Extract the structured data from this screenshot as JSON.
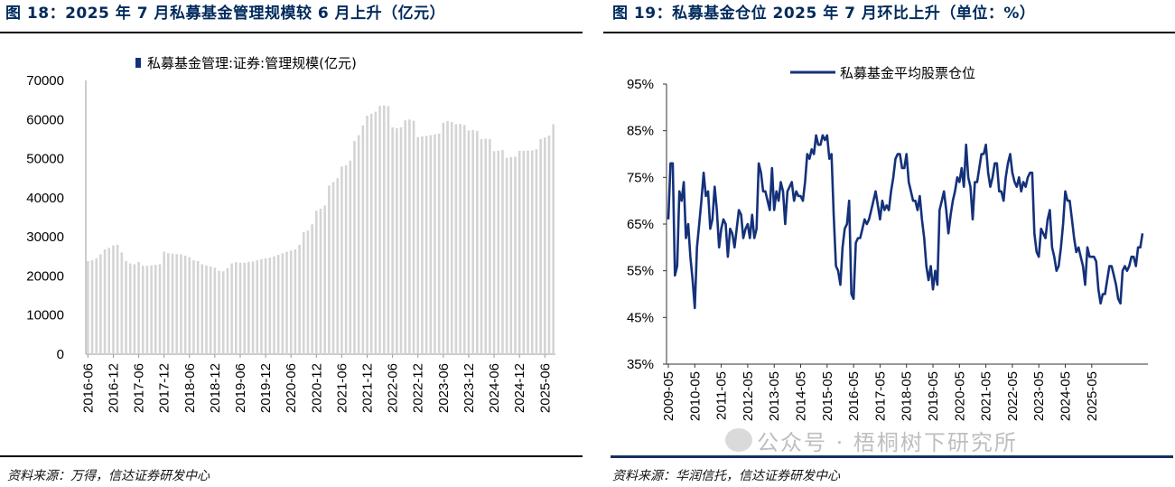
{
  "left": {
    "title": "图 18：2025 年 7 月私募基金管理规模较 6 月上升（亿元）",
    "source": "资料来源：万得，信达证券研发中心"
  },
  "right": {
    "title": "图 19：私募基金仓位 2025 年 7 月环比上升（单位：%）",
    "source": "资料来源：华润信托，信达证券研发中心"
  },
  "watermark": "公众号 · 梧桐树下研究所",
  "colors": {
    "bar": "#d4d4d4",
    "line": "#14317a",
    "legend_marker": "#14317a",
    "title": "#002a5c"
  },
  "chart_data": [
    {
      "type": "bar",
      "legend": "私募基金管理:证券:管理规模(亿元)",
      "ylim": [
        0,
        70000
      ],
      "yticks": [
        "0",
        "10000",
        "20000",
        "30000",
        "40000",
        "50000",
        "60000",
        "70000"
      ],
      "x_tick_labels": [
        "2016-06",
        "2016-12",
        "2017-06",
        "2017-12",
        "2018-06",
        "2018-12",
        "2019-06",
        "2019-12",
        "2020-06",
        "2020-12",
        "2021-06",
        "2021-12",
        "2022-06",
        "2022-12",
        "2023-06",
        "2023-12",
        "2024-06",
        "2024-12",
        "2025-06"
      ],
      "x_tick_index": [
        0,
        6,
        12,
        18,
        24,
        30,
        36,
        42,
        48,
        54,
        60,
        66,
        72,
        78,
        84,
        90,
        96,
        102,
        108
      ],
      "values": [
        23800,
        24000,
        24500,
        25500,
        26800,
        27200,
        27800,
        28000,
        26000,
        23800,
        23200,
        23000,
        23600,
        22600,
        22600,
        22700,
        22800,
        23000,
        26200,
        25800,
        25700,
        25600,
        25500,
        25200,
        24800,
        24000,
        23800,
        23000,
        22700,
        22400,
        22100,
        21300,
        21200,
        22000,
        23200,
        23500,
        23400,
        23400,
        23600,
        23700,
        24000,
        24300,
        24500,
        24700,
        25000,
        25400,
        25800,
        26200,
        26500,
        26800,
        28000,
        31200,
        31600,
        33200,
        36700,
        37200,
        38000,
        43100,
        44000,
        45000,
        48000,
        48300,
        49500,
        54500,
        56000,
        58500,
        61000,
        61500,
        62000,
        63500,
        63600,
        63400,
        58000,
        57800,
        58000,
        59800,
        60000,
        59700,
        55500,
        55700,
        55800,
        56000,
        56200,
        56400,
        59200,
        59600,
        59400,
        58800,
        58900,
        58600,
        57200,
        57300,
        57100,
        55000,
        55100,
        55000,
        51900,
        52000,
        52200,
        50200,
        50400,
        50500,
        52000,
        52000,
        52100,
        52100,
        52400,
        55000,
        55400,
        55900,
        58800
      ]
    },
    {
      "type": "line",
      "legend": "私募基金平均股票仓位",
      "ylim": [
        35,
        95
      ],
      "yticks": [
        "35%",
        "45%",
        "55%",
        "65%",
        "75%",
        "85%",
        "95%"
      ],
      "x_tick_labels": [
        "2009-05",
        "2010-05",
        "2011-05",
        "2012-05",
        "2013-05",
        "2014-05",
        "2015-05",
        "2016-05",
        "2017-05",
        "2018-05",
        "2019-05",
        "2020-05",
        "2021-05",
        "2022-05",
        "2023-05",
        "2024-05",
        "2025-05"
      ],
      "x_tick_index": [
        0,
        12,
        24,
        36,
        48,
        60,
        72,
        84,
        96,
        108,
        120,
        132,
        144,
        156,
        168,
        180,
        192
      ],
      "values": [
        66,
        78,
        78,
        54,
        56,
        72,
        70,
        74,
        62,
        65,
        58,
        53,
        47,
        60,
        65,
        70,
        76,
        71,
        72,
        64,
        66,
        73,
        68,
        60,
        64,
        66,
        65,
        58,
        64,
        63,
        60,
        64,
        68,
        67,
        62,
        64,
        65,
        62,
        67,
        62,
        64,
        78,
        76,
        72,
        72,
        70,
        68,
        77,
        68,
        72,
        70,
        74,
        72,
        65,
        72,
        73,
        74,
        70,
        72,
        71,
        71,
        70,
        74,
        80,
        79,
        81,
        80,
        84,
        82,
        82,
        84,
        83,
        84,
        79,
        80,
        67,
        56,
        55,
        52,
        60,
        64,
        65,
        70,
        50,
        49,
        61,
        62,
        62,
        64,
        66,
        65,
        66,
        68,
        70,
        72,
        69,
        66,
        70,
        68,
        69,
        68,
        72,
        75,
        79,
        80,
        80,
        77,
        77,
        80,
        74,
        72,
        70,
        70,
        68,
        71,
        66,
        62,
        56,
        53,
        56,
        51,
        55,
        52,
        68,
        70,
        72,
        68,
        63,
        67,
        70,
        72,
        75,
        74,
        77,
        73,
        82,
        75,
        73,
        66,
        74,
        74,
        77,
        80,
        80,
        82,
        76,
        73,
        75,
        78,
        78,
        72,
        72,
        70,
        75,
        78,
        80,
        76,
        74,
        73,
        75,
        72,
        74,
        73,
        75,
        76,
        76,
        63,
        59,
        58,
        64,
        63,
        62,
        66,
        68,
        60,
        58,
        55,
        56,
        60,
        65,
        72,
        70,
        70,
        66,
        62,
        59,
        60,
        58,
        56,
        52,
        60,
        58,
        58,
        58,
        57,
        51,
        48,
        50,
        50,
        53,
        56,
        56,
        54,
        52,
        49,
        48,
        55,
        56,
        55,
        56,
        58,
        58,
        56,
        60,
        60,
        63
      ]
    }
  ]
}
